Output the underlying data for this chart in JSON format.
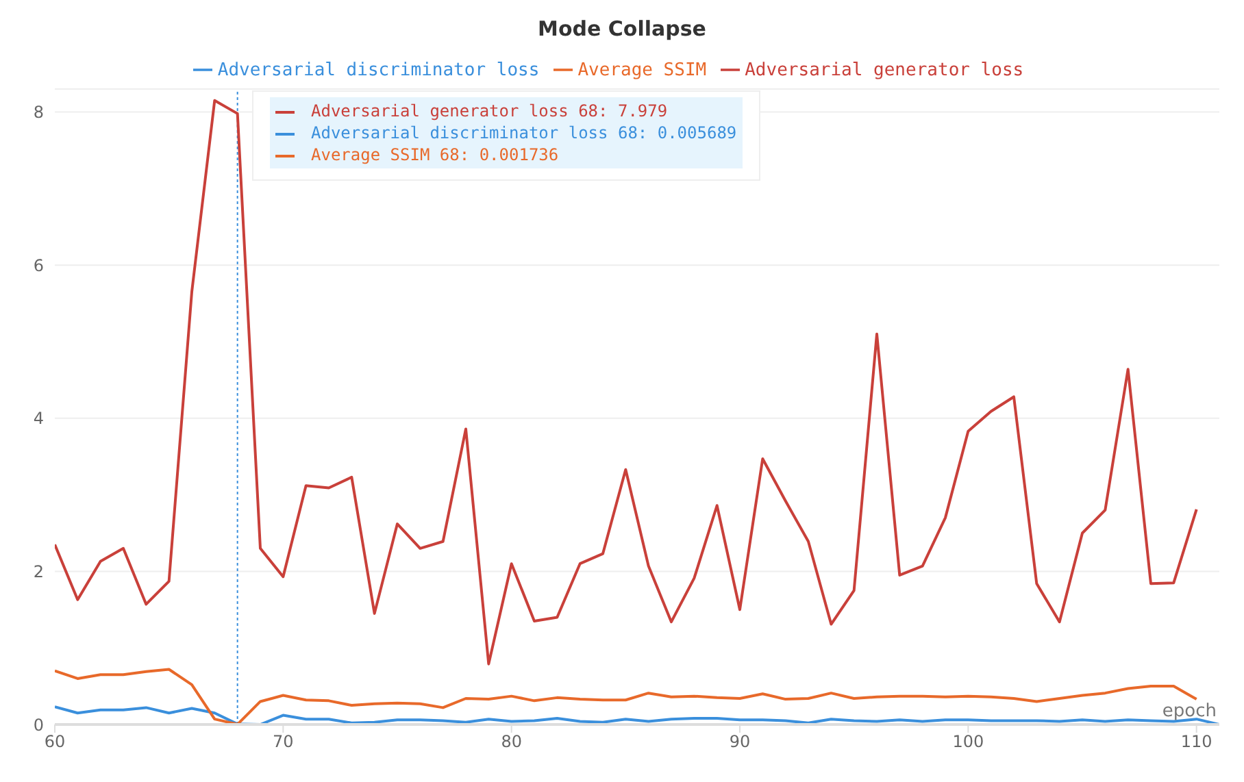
{
  "chart_data": {
    "type": "line",
    "title": "Mode Collapse",
    "xlabel": "epoch",
    "x": [
      60,
      61,
      62,
      63,
      64,
      65,
      66,
      67,
      68,
      69,
      70,
      71,
      72,
      73,
      74,
      75,
      76,
      77,
      78,
      79,
      80,
      81,
      82,
      83,
      84,
      85,
      86,
      87,
      88,
      89,
      90,
      91,
      92,
      93,
      94,
      95,
      96,
      97,
      98,
      99,
      100,
      101,
      102,
      103,
      104,
      105,
      106,
      107,
      108,
      109,
      110
    ],
    "series": [
      {
        "name": "Adversarial discriminator loss",
        "color": "#3a8fdc",
        "x": [
          60,
          61,
          62,
          63,
          64,
          65,
          66,
          67,
          68,
          69,
          70,
          71,
          72,
          73,
          74,
          75,
          76,
          77,
          78,
          79,
          80,
          81,
          82,
          83,
          84,
          85,
          86,
          87,
          88,
          89,
          90,
          91,
          92,
          93,
          94,
          95,
          96,
          97,
          98,
          99,
          100,
          101,
          102,
          103,
          104,
          105,
          106,
          107,
          108,
          109,
          110,
          111
        ],
        "values": [
          0.23,
          0.15,
          0.19,
          0.19,
          0.22,
          0.15,
          0.21,
          0.15,
          0.005689,
          0.0,
          0.12,
          0.07,
          0.07,
          0.02,
          0.03,
          0.06,
          0.06,
          0.05,
          0.03,
          0.07,
          0.04,
          0.05,
          0.08,
          0.04,
          0.03,
          0.07,
          0.04,
          0.07,
          0.08,
          0.08,
          0.06,
          0.06,
          0.05,
          0.02,
          0.07,
          0.05,
          0.04,
          0.06,
          0.04,
          0.06,
          0.06,
          0.05,
          0.05,
          0.05,
          0.04,
          0.06,
          0.04,
          0.06,
          0.05,
          0.04,
          0.07,
          0.0
        ]
      },
      {
        "name": "Average SSIM",
        "color": "#e8692a",
        "values": [
          0.7,
          0.6,
          0.65,
          0.65,
          0.69,
          0.72,
          0.52,
          0.07,
          0.001736,
          0.3,
          0.38,
          0.32,
          0.31,
          0.25,
          0.27,
          0.28,
          0.27,
          0.22,
          0.34,
          0.33,
          0.37,
          0.31,
          0.35,
          0.33,
          0.32,
          0.32,
          0.41,
          0.36,
          0.37,
          0.35,
          0.34,
          0.4,
          0.33,
          0.34,
          0.41,
          0.34,
          0.36,
          0.37,
          0.37,
          0.36,
          0.37,
          0.36,
          0.34,
          0.3,
          0.34,
          0.38,
          0.41,
          0.47,
          0.5,
          0.5,
          0.33
        ]
      },
      {
        "name": "Adversarial generator loss",
        "color": "#c9403a",
        "values": [
          2.35,
          1.63,
          2.13,
          2.3,
          1.57,
          1.87,
          5.65,
          8.15,
          7.979,
          2.3,
          1.93,
          3.12,
          3.09,
          3.23,
          1.45,
          2.62,
          2.3,
          2.39,
          3.86,
          0.79,
          2.1,
          1.35,
          1.4,
          2.1,
          2.23,
          3.33,
          2.07,
          1.34,
          1.91,
          2.86,
          1.5,
          3.47,
          2.92,
          2.39,
          1.31,
          1.75,
          5.1,
          1.95,
          2.07,
          2.7,
          3.83,
          4.09,
          4.28,
          1.84,
          1.34,
          2.5,
          2.8,
          4.64,
          1.84,
          1.85,
          2.81
        ]
      }
    ],
    "xlim": [
      60,
      111
    ],
    "xticks": [
      60,
      70,
      80,
      90,
      100,
      110
    ],
    "ylim": [
      0,
      8.3
    ],
    "yticks": [
      0,
      2,
      4,
      6,
      8
    ],
    "grid": "y",
    "legend": "top",
    "marker": "none",
    "line_style": "solid",
    "ref_lines": [
      {
        "axis": "x",
        "value": 68,
        "color": "#3a8fdc",
        "line_style": "dotted"
      }
    ],
    "annotations": [
      "Adversarial generator loss 68: 7.979",
      "Adversarial discriminator loss 68: 0.005689",
      "Average SSIM 68: 0.001736"
    ]
  }
}
